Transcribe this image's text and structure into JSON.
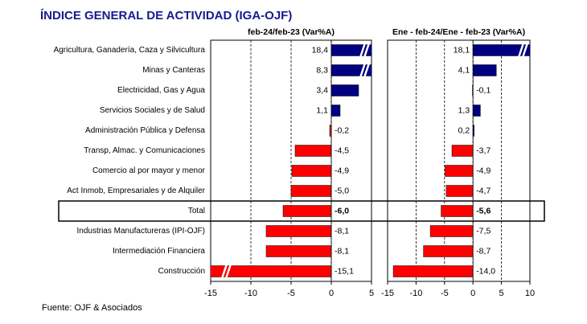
{
  "title": "ÍNDICE GENERAL DE ACTIVIDAD (IGA-OJF)",
  "source": "Fuente: OJF & Asociados",
  "highlight": "Total",
  "chart_data": [
    {
      "type": "bar",
      "orientation": "horizontal",
      "subtitle": "feb-24/feb-23  (Var%A)",
      "categories": [
        "Agricultura, Ganadería, Caza y Silvicultura",
        "Minas y Canteras",
        "Electricidad, Gas y Agua",
        "Servicios Sociales y de Salud",
        "Administración Pública y Defensa",
        "Transp, Almac. y Comunicaciones",
        "Comercio al por mayor y menor",
        "Act Inmob, Empresariales y de Alquiler",
        "Total",
        "Industrias Manufactureras (IPI-OJF)",
        "Intermediación Financiera",
        "Construcción"
      ],
      "values": [
        18.4,
        8.3,
        3.4,
        1.1,
        -0.2,
        -4.5,
        -4.9,
        -5.0,
        -6.0,
        -8.1,
        -8.1,
        -15.1
      ],
      "value_labels": [
        "18,4",
        "8,3",
        "3,4",
        "1,1",
        "-0,2",
        "-4,5",
        "-4,9",
        "-5,0",
        "-6,0",
        "-8,1",
        "-8,1",
        "-15,1"
      ],
      "positive_color": "#000080",
      "negative_color": "#ff0000",
      "xlim": [
        -15,
        5
      ],
      "xticks": [
        -15,
        -10,
        -5,
        0,
        5
      ],
      "grid": true
    },
    {
      "type": "bar",
      "orientation": "horizontal",
      "subtitle": "Ene - feb-24/Ene - feb-23  (Var%A)",
      "values": [
        18.1,
        4.1,
        -0.1,
        1.3,
        0.2,
        -3.7,
        -4.9,
        -4.7,
        -5.6,
        -7.5,
        -8.7,
        -14.0
      ],
      "value_labels": [
        "18,1",
        "4,1",
        "-0,1",
        "1,3",
        "0,2",
        "-3,7",
        "-4,9",
        "-4,7",
        "-5,6",
        "-7,5",
        "-8,7",
        "-14,0"
      ],
      "positive_color": "#000080",
      "negative_color": "#ff0000",
      "xlim": [
        -15,
        10
      ],
      "xticks": [
        -15,
        -10,
        -5,
        0,
        5,
        10
      ],
      "grid": true
    }
  ]
}
